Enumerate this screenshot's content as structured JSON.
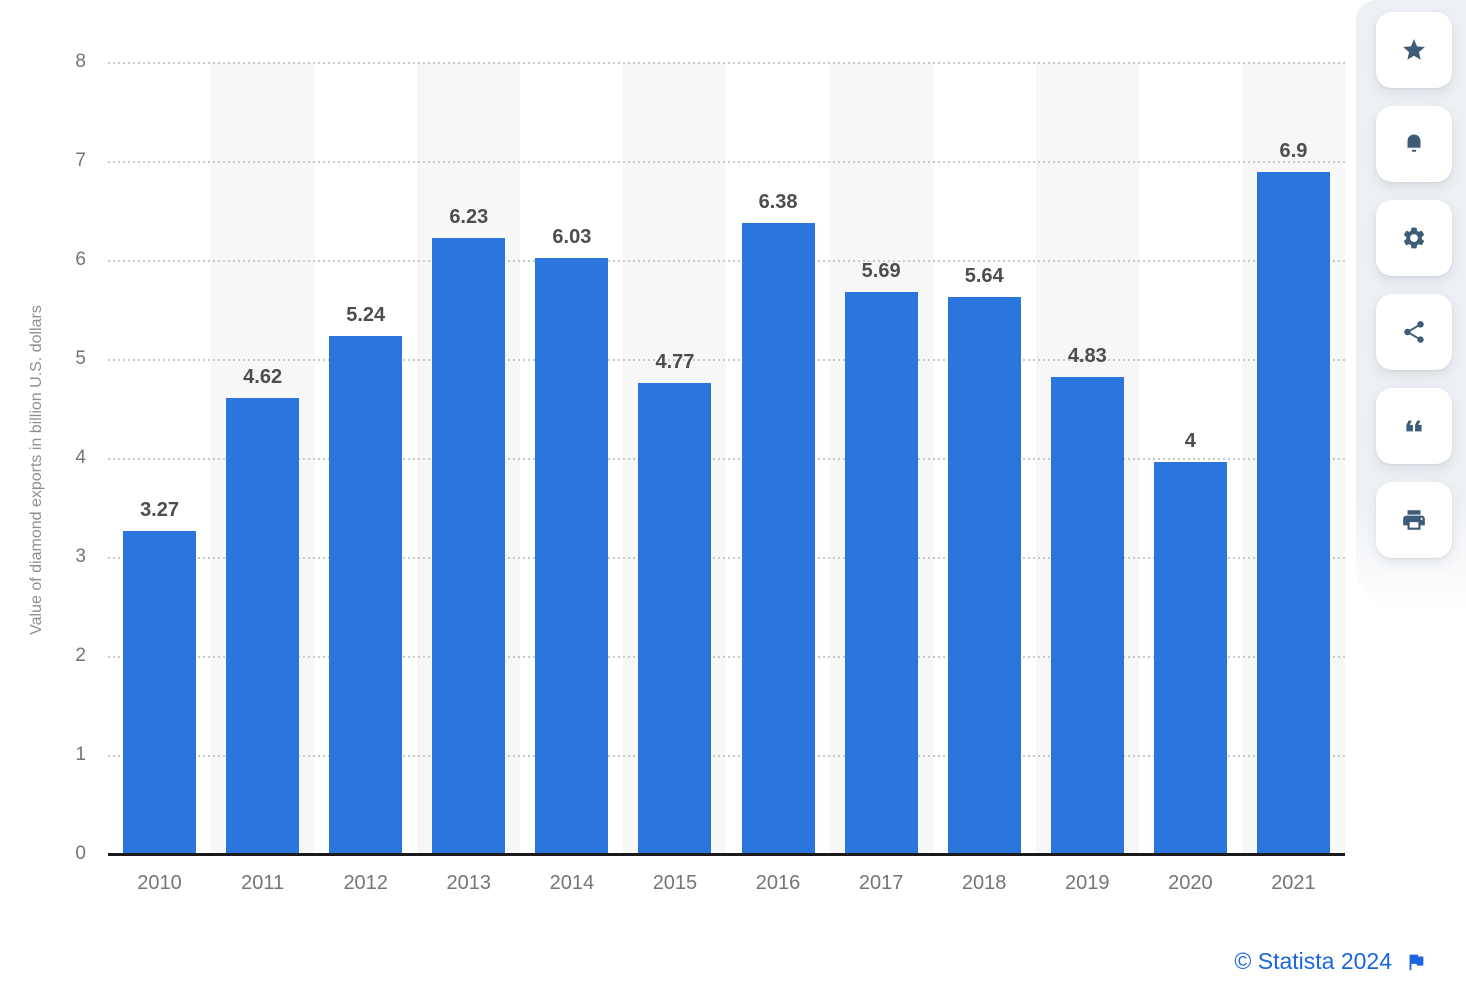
{
  "chart_data": {
    "type": "bar",
    "title": "",
    "xlabel": "",
    "ylabel": "Value of diamond exports in billion U.S. dollars",
    "categories": [
      "2010",
      "2011",
      "2012",
      "2013",
      "2014",
      "2015",
      "2016",
      "2017",
      "2018",
      "2019",
      "2020",
      "2021"
    ],
    "values": [
      3.27,
      4.62,
      5.24,
      6.23,
      6.03,
      4.77,
      6.38,
      5.69,
      5.64,
      4.83,
      3.97,
      6.9
    ],
    "value_labels": [
      "3.27",
      "4.62",
      "5.24",
      "6.23",
      "6.03",
      "4.77",
      "6.38",
      "5.69",
      "5.64",
      "4.83",
      "4",
      "6.9"
    ],
    "ylim": [
      0,
      8
    ],
    "yticks": [
      0,
      1,
      2,
      3,
      4,
      5,
      6,
      7,
      8
    ],
    "grid": "horizontal-dotted",
    "legend": "none",
    "alternating_column_bands": true,
    "bar_color": "#2a76dc",
    "band_color": "#f7f7f8"
  },
  "toolbar": {
    "buttons": [
      {
        "id": "favorite",
        "icon": "star-icon"
      },
      {
        "id": "notifications",
        "icon": "bell-icon"
      },
      {
        "id": "settings",
        "icon": "gear-icon"
      },
      {
        "id": "share",
        "icon": "share-icon"
      },
      {
        "id": "citation",
        "icon": "quote-icon"
      },
      {
        "id": "print",
        "icon": "printer-icon"
      }
    ]
  },
  "attribution": {
    "text": "© Statista 2024",
    "flag_icon": "flag-icon"
  },
  "colors": {
    "bar_blue": "#2a76dc",
    "column_band": "#f7f7f8",
    "grid_dots": "#c9c9c9",
    "axis_line": "#1a1a1a",
    "value_text": "#4d4d4d",
    "tick_text": "#757575",
    "y_title_text": "#8f8f8f",
    "toolbar_bg": "#edf0f4",
    "toolbar_icon": "#3e5c78",
    "attribution_blue": "#1b66e0",
    "page_bg": "#ffffff"
  }
}
